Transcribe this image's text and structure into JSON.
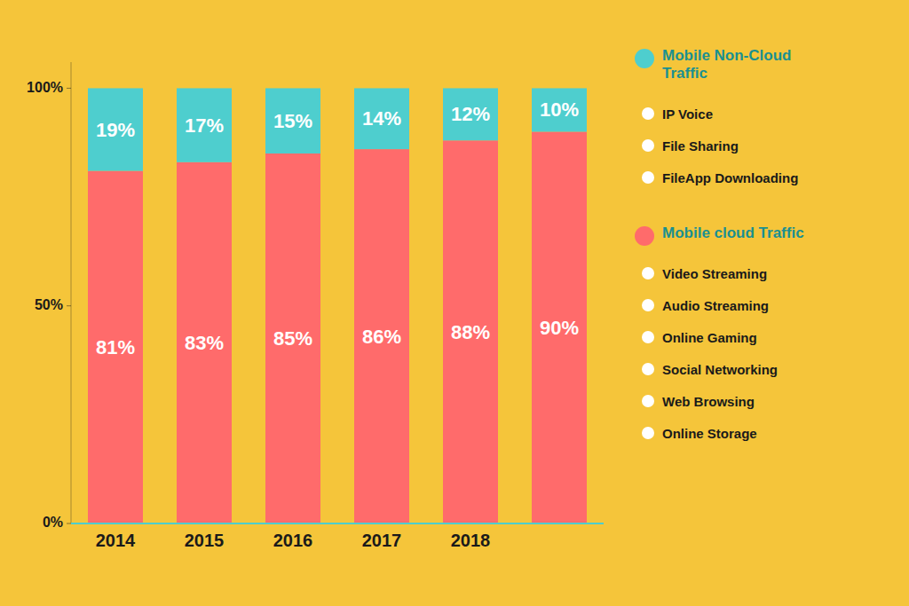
{
  "chart_data": {
    "type": "bar",
    "stacked": true,
    "data_labels": true,
    "grid": false,
    "legend": "right",
    "categories": [
      "2014",
      "2015",
      "2016",
      "2017",
      "2018",
      null
    ],
    "series": [
      {
        "name": "Mobile cloud Traffic",
        "color": "#FF6B6B",
        "values": [
          81,
          83,
          85,
          86,
          88,
          90
        ],
        "value_labels": [
          "81%",
          "83%",
          "85%",
          "86%",
          "88%",
          "90%"
        ],
        "annotations": [
          "Video Streaming",
          "Audio Streaming",
          "Online Gaming",
          "Social Networking",
          "Web Browsing",
          "Online Storage"
        ]
      },
      {
        "name": "Mobile Non-Cloud\nTraffic",
        "color": "#4ECECE",
        "values": [
          19,
          17,
          15,
          14,
          12,
          10
        ],
        "value_labels": [
          "19%",
          "17%",
          "15%",
          "14%",
          "12%",
          "10%"
        ],
        "annotations": [
          "IP Voice",
          "File Sharing",
          "FileApp Downloading"
        ]
      }
    ],
    "ylim": [
      0,
      106
    ],
    "yticks": [
      {
        "value": 0,
        "label": "0%"
      },
      {
        "value": 50,
        "label": "50%"
      },
      {
        "value": 100,
        "label": "100%"
      }
    ]
  }
}
